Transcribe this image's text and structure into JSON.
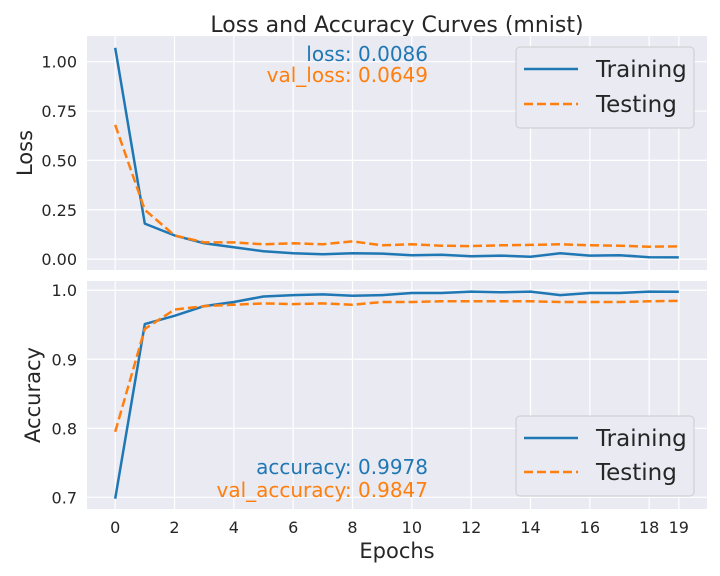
{
  "title": "Loss and Accuracy Curves (mnist)",
  "xlabel": "Epochs",
  "legend_labels": [
    "Training",
    "Testing"
  ],
  "colors": {
    "train": "#1f77b4",
    "test": "#ff7f0e",
    "panel_bg": "#eaeaf2",
    "grid": "#ffffff"
  },
  "chart_data": [
    {
      "type": "line",
      "ylabel": "Loss",
      "x": [
        0,
        1,
        2,
        3,
        4,
        5,
        6,
        7,
        8,
        9,
        10,
        11,
        12,
        13,
        14,
        15,
        16,
        17,
        18,
        19
      ],
      "xlim": [
        -0.95,
        19.95
      ],
      "ylim": [
        -0.055,
        1.13
      ],
      "xticks": [
        0,
        2,
        4,
        6,
        8,
        10,
        12,
        14,
        16,
        18,
        19
      ],
      "xtick_labels": [
        "0",
        "2",
        "4",
        "6",
        "8",
        "10",
        "12",
        "14",
        "16",
        "18",
        "19"
      ],
      "yticks": [
        0.0,
        0.25,
        0.5,
        0.75,
        1.0
      ],
      "ytick_labels": [
        "0.00",
        "0.25",
        "0.50",
        "0.75",
        "1.00"
      ],
      "series": [
        {
          "name": "Training",
          "style": "solid",
          "values": [
            1.07,
            0.18,
            0.12,
            0.08,
            0.06,
            0.04,
            0.03,
            0.025,
            0.03,
            0.028,
            0.02,
            0.022,
            0.015,
            0.018,
            0.012,
            0.03,
            0.018,
            0.02,
            0.01,
            0.0086
          ]
        },
        {
          "name": "Testing",
          "style": "dashed",
          "values": [
            0.68,
            0.25,
            0.12,
            0.085,
            0.085,
            0.075,
            0.08,
            0.075,
            0.09,
            0.07,
            0.075,
            0.068,
            0.066,
            0.07,
            0.072,
            0.075,
            0.07,
            0.068,
            0.063,
            0.0649
          ]
        }
      ],
      "annotations": [
        "loss: 0.0086",
        "val_loss: 0.0649"
      ],
      "legend": "upper right",
      "grid": true
    },
    {
      "type": "line",
      "ylabel": "Accuracy",
      "x": [
        0,
        1,
        2,
        3,
        4,
        5,
        6,
        7,
        8,
        9,
        10,
        11,
        12,
        13,
        14,
        15,
        16,
        17,
        18,
        19
      ],
      "xlim": [
        -0.95,
        19.95
      ],
      "ylim": [
        0.6831,
        1.0134
      ],
      "xticks": [
        0,
        2,
        4,
        6,
        8,
        10,
        12,
        14,
        16,
        18,
        19
      ],
      "xtick_labels": [
        "0",
        "2",
        "4",
        "6",
        "8",
        "10",
        "12",
        "14",
        "16",
        "18",
        "19"
      ],
      "yticks": [
        0.7,
        0.8,
        0.9,
        1.0
      ],
      "ytick_labels": [
        "0.7",
        "0.8",
        "0.9",
        "1.0"
      ],
      "series": [
        {
          "name": "Training",
          "style": "solid",
          "values": [
            0.698,
            0.951,
            0.963,
            0.977,
            0.983,
            0.991,
            0.993,
            0.994,
            0.992,
            0.993,
            0.996,
            0.996,
            0.998,
            0.997,
            0.998,
            0.993,
            0.996,
            0.996,
            0.998,
            0.9978
          ]
        },
        {
          "name": "Testing",
          "style": "dashed",
          "values": [
            0.795,
            0.944,
            0.972,
            0.977,
            0.979,
            0.981,
            0.98,
            0.981,
            0.979,
            0.983,
            0.983,
            0.984,
            0.984,
            0.984,
            0.984,
            0.983,
            0.983,
            0.983,
            0.984,
            0.9847
          ]
        }
      ],
      "annotations": [
        "accuracy: 0.9978",
        "val_accuracy: 0.9847"
      ],
      "legend": "lower right",
      "grid": true
    }
  ]
}
